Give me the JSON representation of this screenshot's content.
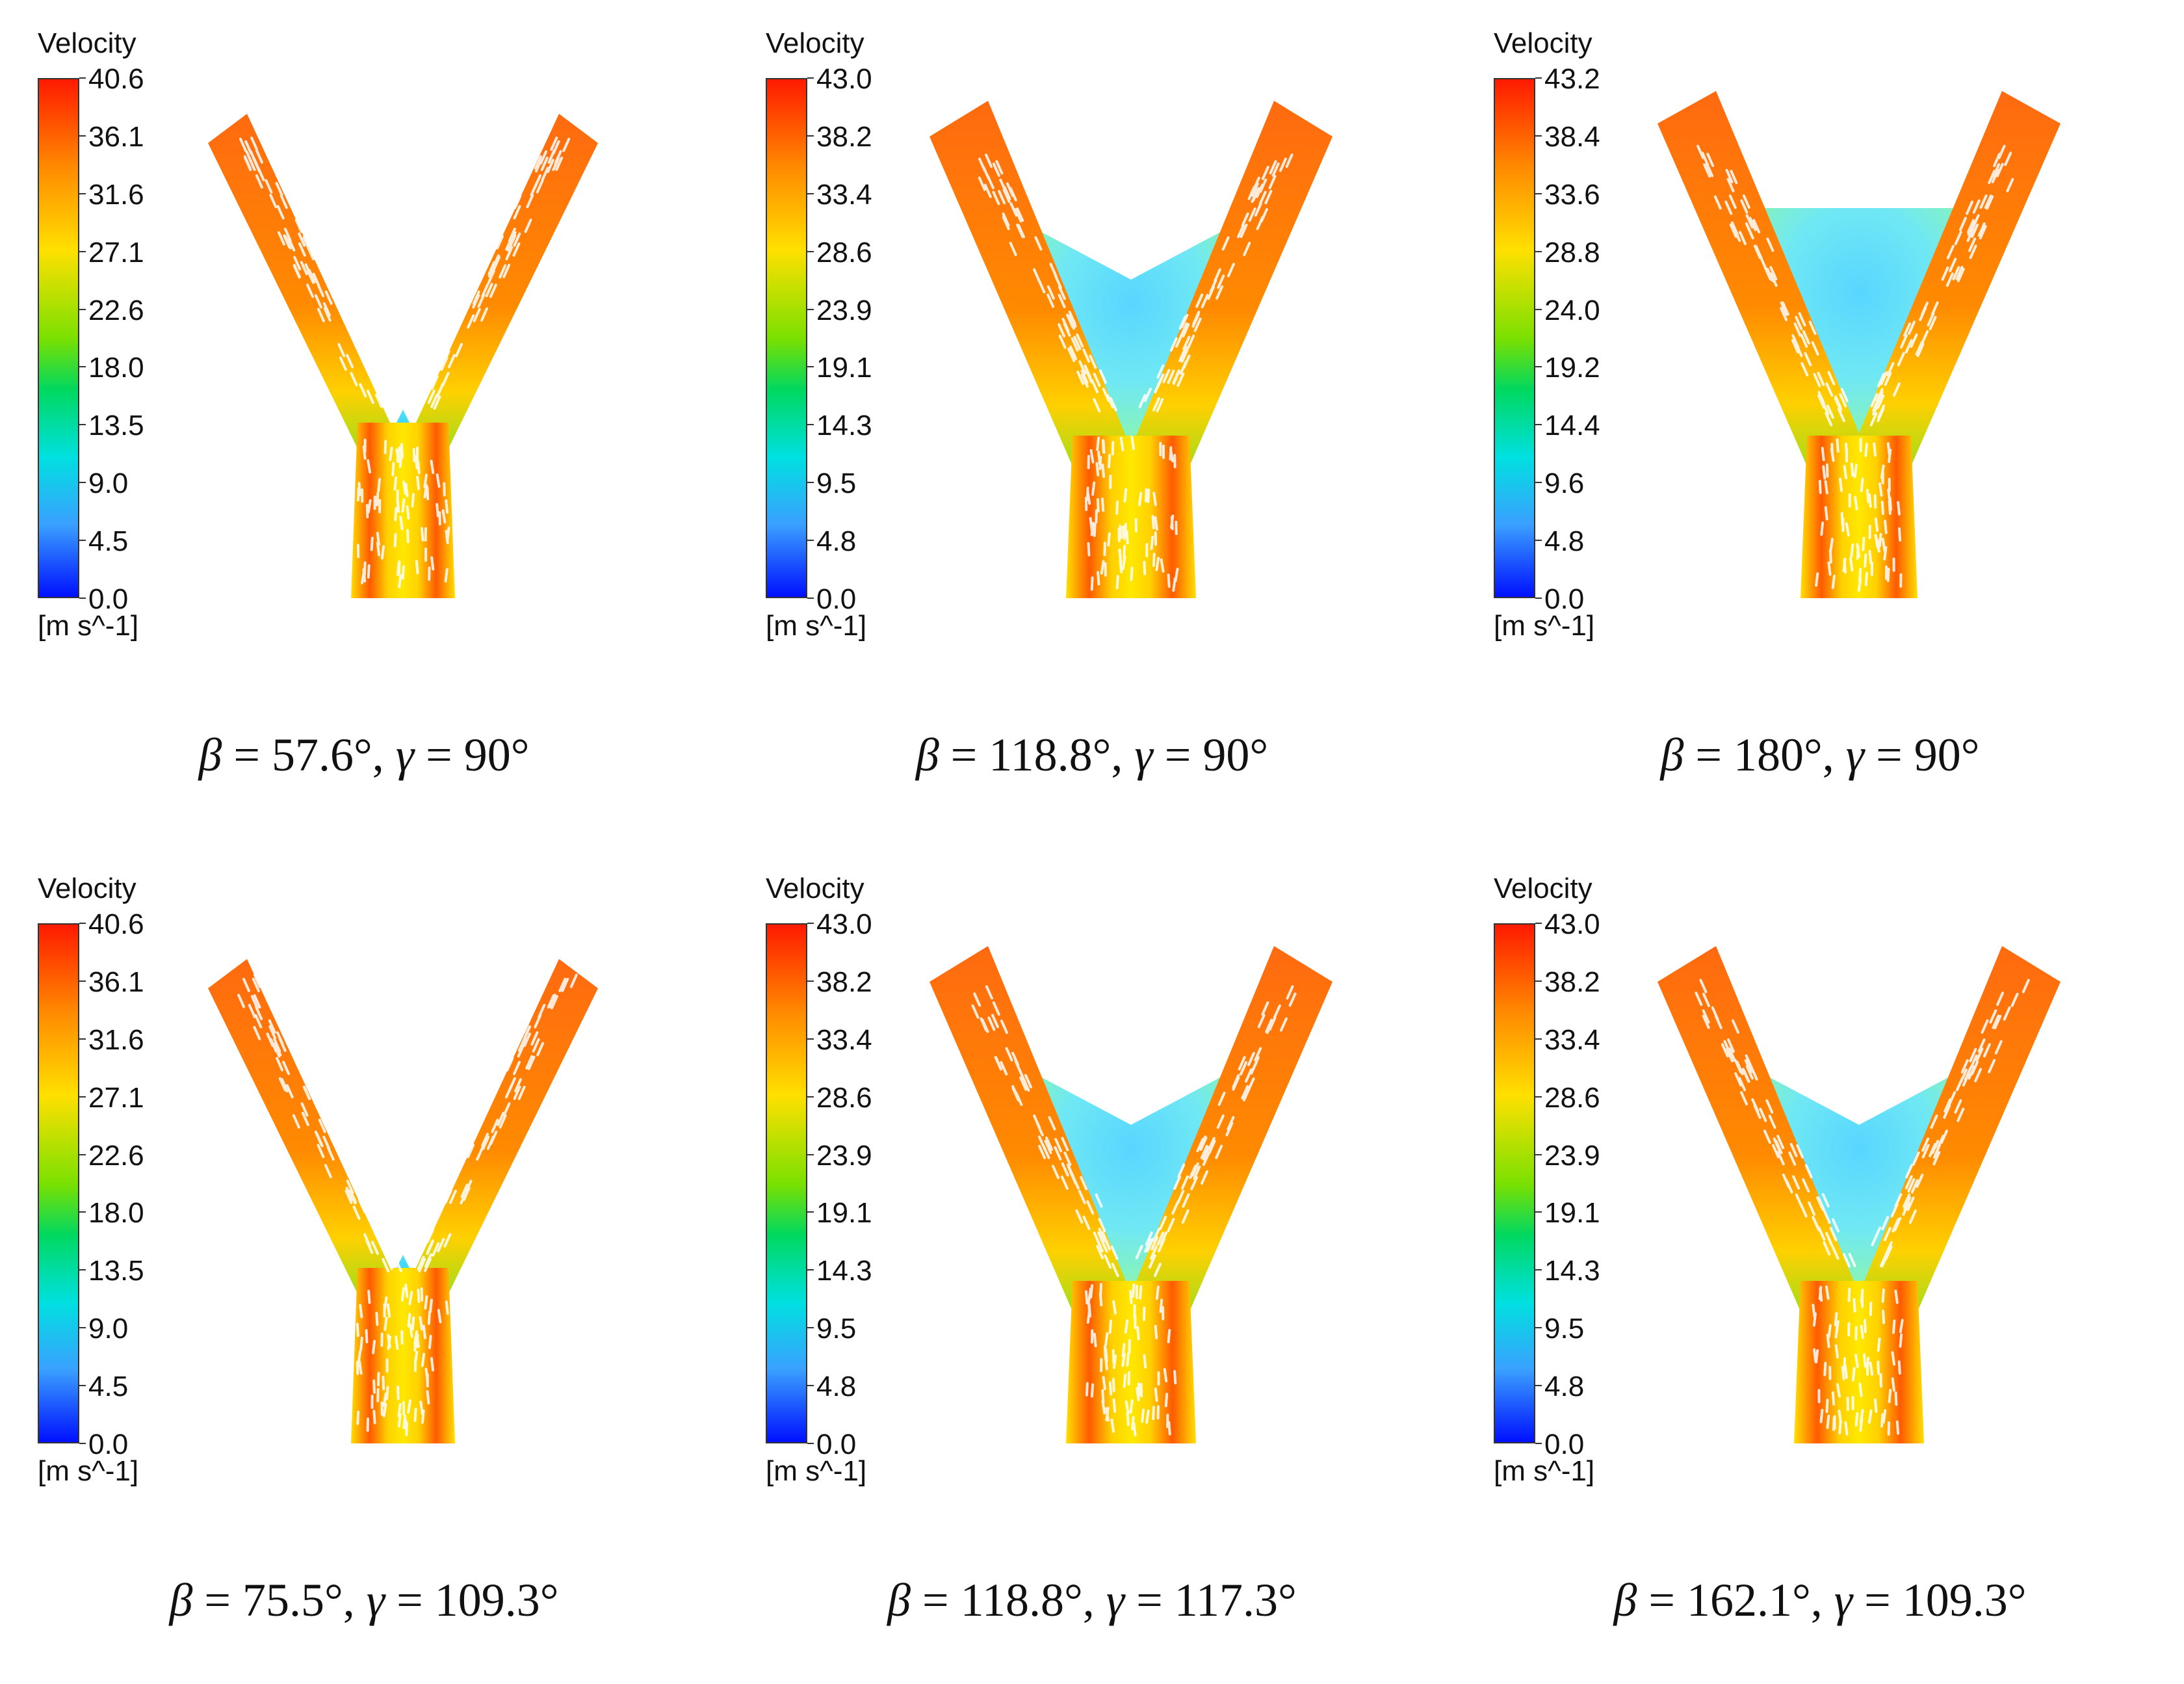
{
  "panels": [
    {
      "legend_title": "Velocity",
      "ticks": [
        "40.6",
        "36.1",
        "31.6",
        "27.1",
        "22.6",
        "18.0",
        "13.5",
        "9.0",
        "4.5",
        "0.0"
      ],
      "unit": "[m s^-1]",
      "caption": {
        "beta": "57.6°",
        "gamma": "90°"
      },
      "shape": "narrow"
    },
    {
      "legend_title": "Velocity",
      "ticks": [
        "43.0",
        "38.2",
        "33.4",
        "28.6",
        "23.9",
        "19.1",
        "14.3",
        "9.5",
        "4.8",
        "0.0"
      ],
      "unit": "[m s^-1]",
      "caption": {
        "beta": "118.8°",
        "gamma": "90°"
      },
      "shape": "wide"
    },
    {
      "legend_title": "Velocity",
      "ticks": [
        "43.2",
        "38.4",
        "33.6",
        "28.8",
        "24.0",
        "19.2",
        "14.4",
        "9.6",
        "4.8",
        "0.0"
      ],
      "unit": "[m s^-1]",
      "caption": {
        "beta": "180°",
        "gamma": "90°"
      },
      "shape": "flat"
    },
    {
      "legend_title": "Velocity",
      "ticks": [
        "40.6",
        "36.1",
        "31.6",
        "27.1",
        "22.6",
        "18.0",
        "13.5",
        "9.0",
        "4.5",
        "0.0"
      ],
      "unit": "[m s^-1]",
      "caption": {
        "beta": "75.5°",
        "gamma": "109.3°"
      },
      "shape": "narrow"
    },
    {
      "legend_title": "Velocity",
      "ticks": [
        "43.0",
        "38.2",
        "33.4",
        "28.6",
        "23.9",
        "19.1",
        "14.3",
        "9.5",
        "4.8",
        "0.0"
      ],
      "unit": "[m s^-1]",
      "caption": {
        "beta": "118.8°",
        "gamma": "117.3°"
      },
      "shape": "wide"
    },
    {
      "legend_title": "Velocity",
      "ticks": [
        "43.0",
        "38.2",
        "33.4",
        "28.6",
        "23.9",
        "19.1",
        "14.3",
        "9.5",
        "4.8",
        "0.0"
      ],
      "unit": "[m s^-1]",
      "caption": {
        "beta": "162.1°",
        "gamma": "109.3°"
      },
      "shape": "wide"
    }
  ],
  "caption_symbols": {
    "beta": "β",
    "gamma": "γ",
    "eq": " = ",
    "sep": ", "
  }
}
